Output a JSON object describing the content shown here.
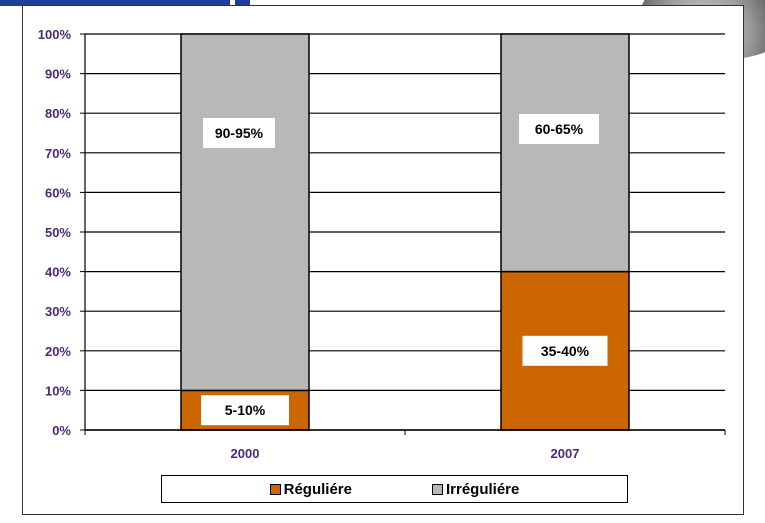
{
  "colors": {
    "reguliere": "#cc6600",
    "irreguliere": "#b8b8b8",
    "tick_text": "#4b2a7a"
  },
  "chart_data": {
    "type": "bar",
    "stacked": true,
    "categories": [
      "2000",
      "2007"
    ],
    "series": [
      {
        "name": "Réguliére",
        "values": [
          10,
          40
        ],
        "data_labels": [
          "5-10%",
          "35-40%"
        ]
      },
      {
        "name": "Irréguliére",
        "values": [
          90,
          60
        ],
        "data_labels": [
          "90-95%",
          "60-65%"
        ]
      }
    ],
    "y_ticks": [
      "0%",
      "10%",
      "20%",
      "30%",
      "40%",
      "50%",
      "60%",
      "70%",
      "80%",
      "90%",
      "100%"
    ],
    "ylim": [
      0,
      100
    ],
    "grid": true,
    "legend_position": "bottom"
  },
  "legend": {
    "items": [
      {
        "label": "Réguliére"
      },
      {
        "label": "Irréguliére"
      }
    ]
  }
}
